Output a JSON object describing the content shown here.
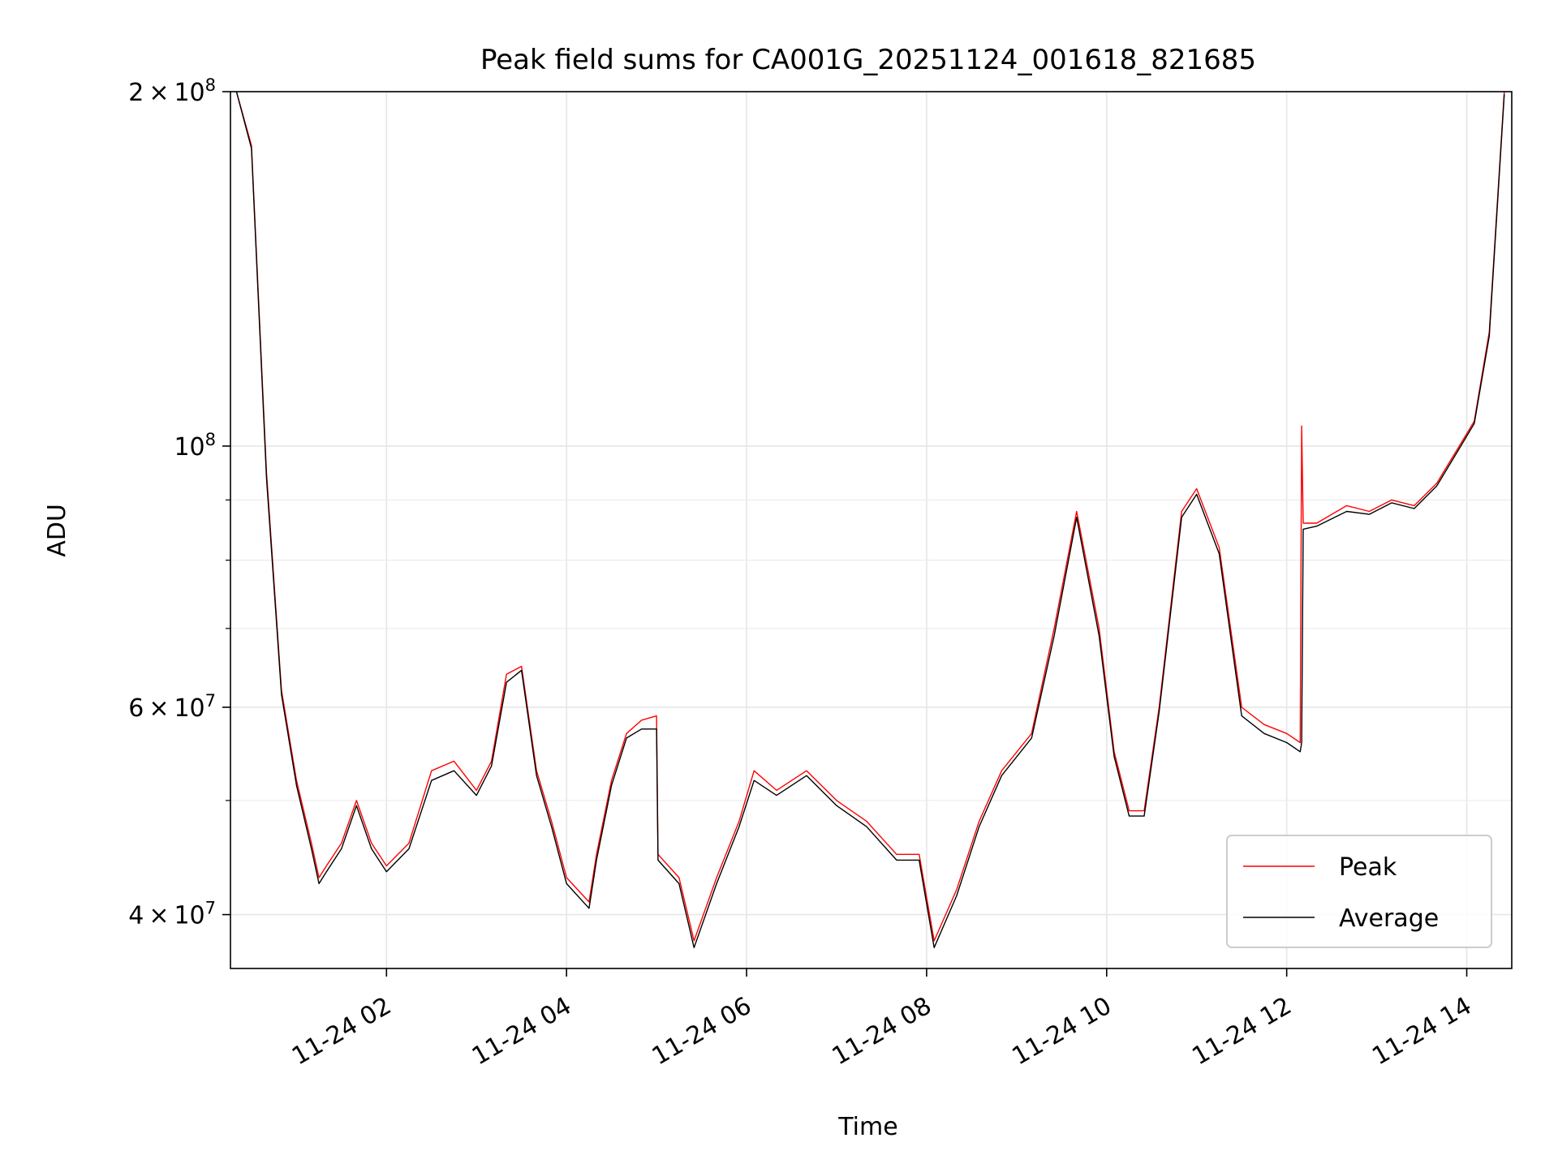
{
  "chart_data": {
    "type": "line",
    "title": "Peak field sums for CA001G_20251124_001618_821685",
    "xlabel": "Time",
    "ylabel": "ADU",
    "yscale": "log",
    "xlim": [
      "2025-11-24T00:16",
      "2025-11-24T14:30"
    ],
    "ylim": [
      36000000,
      200000000
    ],
    "x_ticks": [
      {
        "value": "2025-11-24T02:00",
        "label": "11-24 02"
      },
      {
        "value": "2025-11-24T04:00",
        "label": "11-24 04"
      },
      {
        "value": "2025-11-24T06:00",
        "label": "11-24 06"
      },
      {
        "value": "2025-11-24T08:00",
        "label": "11-24 08"
      },
      {
        "value": "2025-11-24T10:00",
        "label": "11-24 10"
      },
      {
        "value": "2025-11-24T12:00",
        "label": "11-24 12"
      },
      {
        "value": "2025-11-24T14:00",
        "label": "11-24 14"
      }
    ],
    "y_ticks": [
      {
        "value": 40000000,
        "mantissa": "4",
        "exponent": "7"
      },
      {
        "value": 60000000,
        "mantissa": "6",
        "exponent": "7"
      },
      {
        "value": 100000000,
        "mantissa": "",
        "exponent": "8"
      },
      {
        "value": 200000000,
        "mantissa": "2",
        "exponent": "8"
      }
    ],
    "grid": true,
    "legend_position": "lower-right",
    "series": [
      {
        "name": "Peak",
        "color": "#ff0000",
        "x": [
          "2025-11-24T00:20",
          "2025-11-24T00:30",
          "2025-11-24T00:40",
          "2025-11-24T00:50",
          "2025-11-24T01:00",
          "2025-11-24T01:10",
          "2025-11-24T01:15",
          "2025-11-24T01:20",
          "2025-11-24T01:30",
          "2025-11-24T01:40",
          "2025-11-24T01:50",
          "2025-11-24T02:00",
          "2025-11-24T02:15",
          "2025-11-24T02:30",
          "2025-11-24T02:45",
          "2025-11-24T03:00",
          "2025-11-24T03:10",
          "2025-11-24T03:20",
          "2025-11-24T03:30",
          "2025-11-24T03:40",
          "2025-11-24T03:50",
          "2025-11-24T04:00",
          "2025-11-24T04:15",
          "2025-11-24T04:20",
          "2025-11-24T04:30",
          "2025-11-24T04:40",
          "2025-11-24T04:50",
          "2025-11-24T05:00",
          "2025-11-24T05:01",
          "2025-11-24T05:15",
          "2025-11-24T05:25",
          "2025-11-24T05:40",
          "2025-11-24T05:55",
          "2025-11-24T06:05",
          "2025-11-24T06:20",
          "2025-11-24T06:40",
          "2025-11-24T07:00",
          "2025-11-24T07:20",
          "2025-11-24T07:40",
          "2025-11-24T07:55",
          "2025-11-24T08:05",
          "2025-11-24T08:20",
          "2025-11-24T08:35",
          "2025-11-24T08:50",
          "2025-11-24T09:10",
          "2025-11-24T09:25",
          "2025-11-24T09:40",
          "2025-11-24T09:55",
          "2025-11-24T10:05",
          "2025-11-24T10:15",
          "2025-11-24T10:25",
          "2025-11-24T10:35",
          "2025-11-24T10:50",
          "2025-11-24T11:00",
          "2025-11-24T11:15",
          "2025-11-24T11:30",
          "2025-11-24T11:45",
          "2025-11-24T12:00",
          "2025-11-24T12:09",
          "2025-11-24T12:10",
          "2025-11-24T12:11",
          "2025-11-24T12:20",
          "2025-11-24T12:40",
          "2025-11-24T12:55",
          "2025-11-24T13:10",
          "2025-11-24T13:25",
          "2025-11-24T13:40",
          "2025-11-24T13:55",
          "2025-11-24T14:05",
          "2025-11-24T14:15",
          "2025-11-24T14:25"
        ],
        "values": [
          200000000,
          180000000,
          95000000,
          62000000,
          52000000,
          46000000,
          43000000,
          44000000,
          46000000,
          50000000,
          46000000,
          44000000,
          46000000,
          53000000,
          54000000,
          51000000,
          54000000,
          64000000,
          65000000,
          53000000,
          48000000,
          43000000,
          41000000,
          45000000,
          52000000,
          57000000,
          58500000,
          59000000,
          45000000,
          43000000,
          38000000,
          43000000,
          48000000,
          53000000,
          51000000,
          53000000,
          50000000,
          48000000,
          45000000,
          45000000,
          38000000,
          42000000,
          48000000,
          53000000,
          57000000,
          70000000,
          88000000,
          70000000,
          55000000,
          49000000,
          49000000,
          60000000,
          88000000,
          92000000,
          82000000,
          60000000,
          58000000,
          57000000,
          56000000,
          104000000,
          86000000,
          86000000,
          89000000,
          88000000,
          90000000,
          89000000,
          93000000,
          100000000,
          105000000,
          125000000,
          200000000
        ]
      },
      {
        "name": "Average",
        "color": "#000000",
        "x": [
          "2025-11-24T00:20",
          "2025-11-24T00:30",
          "2025-11-24T00:40",
          "2025-11-24T00:50",
          "2025-11-24T01:00",
          "2025-11-24T01:10",
          "2025-11-24T01:15",
          "2025-11-24T01:20",
          "2025-11-24T01:30",
          "2025-11-24T01:40",
          "2025-11-24T01:50",
          "2025-11-24T02:00",
          "2025-11-24T02:15",
          "2025-11-24T02:30",
          "2025-11-24T02:45",
          "2025-11-24T03:00",
          "2025-11-24T03:10",
          "2025-11-24T03:20",
          "2025-11-24T03:30",
          "2025-11-24T03:40",
          "2025-11-24T03:50",
          "2025-11-24T04:00",
          "2025-11-24T04:15",
          "2025-11-24T04:20",
          "2025-11-24T04:30",
          "2025-11-24T04:40",
          "2025-11-24T04:50",
          "2025-11-24T05:00",
          "2025-11-24T05:01",
          "2025-11-24T05:15",
          "2025-11-24T05:25",
          "2025-11-24T05:40",
          "2025-11-24T05:55",
          "2025-11-24T06:05",
          "2025-11-24T06:20",
          "2025-11-24T06:40",
          "2025-11-24T07:00",
          "2025-11-24T07:20",
          "2025-11-24T07:40",
          "2025-11-24T07:55",
          "2025-11-24T08:05",
          "2025-11-24T08:20",
          "2025-11-24T08:35",
          "2025-11-24T08:50",
          "2025-11-24T09:10",
          "2025-11-24T09:25",
          "2025-11-24T09:40",
          "2025-11-24T09:55",
          "2025-11-24T10:05",
          "2025-11-24T10:15",
          "2025-11-24T10:25",
          "2025-11-24T10:35",
          "2025-11-24T10:50",
          "2025-11-24T11:00",
          "2025-11-24T11:15",
          "2025-11-24T11:30",
          "2025-11-24T11:45",
          "2025-11-24T12:00",
          "2025-11-24T12:09",
          "2025-11-24T12:10",
          "2025-11-24T12:11",
          "2025-11-24T12:20",
          "2025-11-24T12:40",
          "2025-11-24T12:55",
          "2025-11-24T13:10",
          "2025-11-24T13:25",
          "2025-11-24T13:40",
          "2025-11-24T13:55",
          "2025-11-24T14:05",
          "2025-11-24T14:15",
          "2025-11-24T14:25"
        ],
        "values": [
          200000000,
          179000000,
          94000000,
          61500000,
          51500000,
          45500000,
          42500000,
          43500000,
          45500000,
          49500000,
          45500000,
          43500000,
          45500000,
          52000000,
          53000000,
          50500000,
          53500000,
          63000000,
          64500000,
          52500000,
          47500000,
          42500000,
          40500000,
          44500000,
          51500000,
          56500000,
          57500000,
          57500000,
          44500000,
          42500000,
          37500000,
          42500000,
          47500000,
          52000000,
          50500000,
          52500000,
          49500000,
          47500000,
          44500000,
          44500000,
          37500000,
          41500000,
          47500000,
          52500000,
          56500000,
          69000000,
          87000000,
          69000000,
          54500000,
          48500000,
          48500000,
          59500000,
          87000000,
          91000000,
          81000000,
          59000000,
          57000000,
          56000000,
          55000000,
          56000000,
          85000000,
          85500000,
          88000000,
          87500000,
          89500000,
          88500000,
          92500000,
          99500000,
          104500000,
          124000000,
          199000000
        ]
      }
    ]
  }
}
